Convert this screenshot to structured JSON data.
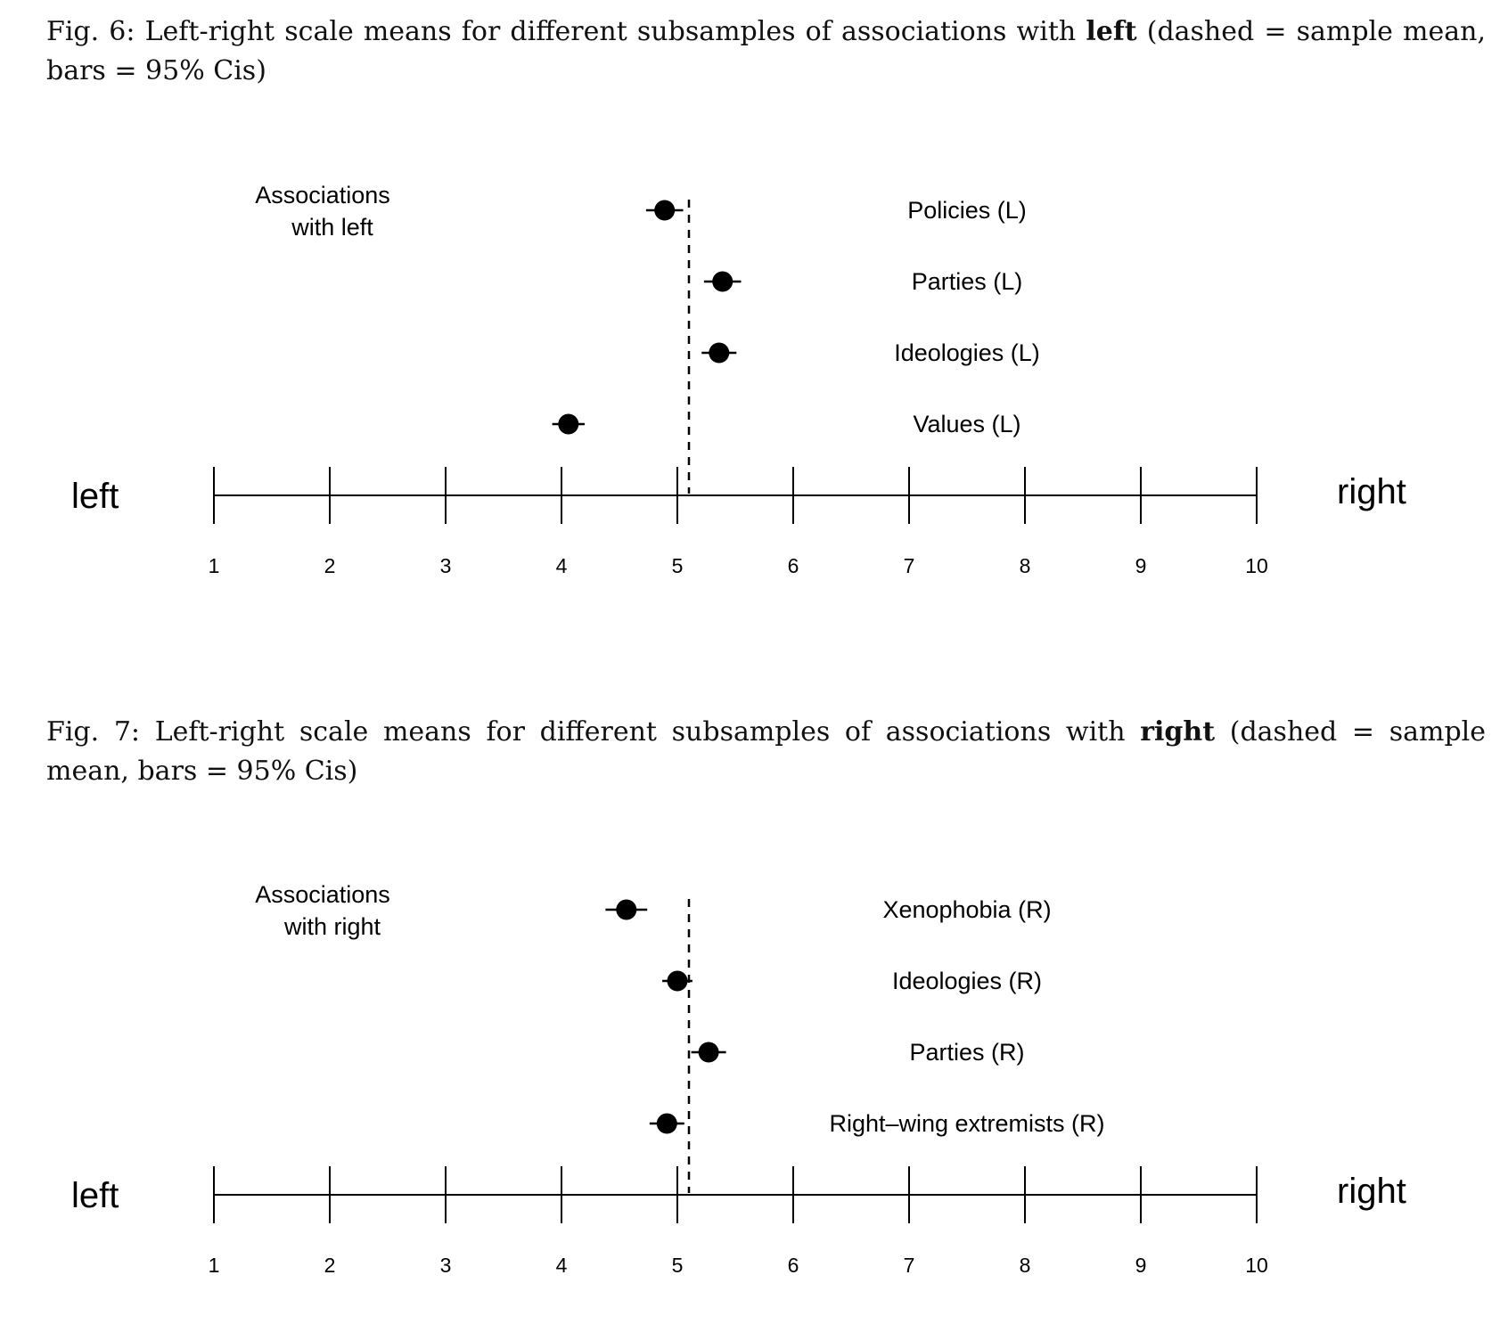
{
  "figures": [
    {
      "caption_lead": "Fig. 6: Left-right scale means for different subsamples of associations with ",
      "caption_bold": "left",
      "caption_tail": " (dashed = sample mean, bars = 95% Cis)"
    },
    {
      "caption_lead": "Fig. 7: Left-right scale means for different subsamples of associations with ",
      "caption_bold": "right",
      "caption_tail": " (dashed = sample mean, bars = 95% Cis)"
    }
  ],
  "chart_data": [
    {
      "type": "scatter",
      "panel_label": [
        "Associations",
        "with left"
      ],
      "left_label": "left",
      "right_label": "right",
      "xlim": [
        1,
        10
      ],
      "x_ticks": [
        1,
        2,
        3,
        4,
        5,
        6,
        7,
        8,
        9,
        10
      ],
      "sample_mean": 5.1,
      "points": [
        {
          "label": "Policies (L)",
          "mean": 4.89,
          "ci": [
            4.73,
            5.05
          ]
        },
        {
          "label": "Parties (L)",
          "mean": 5.39,
          "ci": [
            5.23,
            5.55
          ]
        },
        {
          "label": "Ideologies (L)",
          "mean": 5.36,
          "ci": [
            5.21,
            5.51
          ]
        },
        {
          "label": "Values (L)",
          "mean": 4.06,
          "ci": [
            3.92,
            4.2
          ]
        }
      ]
    },
    {
      "type": "scatter",
      "panel_label": [
        "Associations",
        "with right"
      ],
      "left_label": "left",
      "right_label": "right",
      "xlim": [
        1,
        10
      ],
      "x_ticks": [
        1,
        2,
        3,
        4,
        5,
        6,
        7,
        8,
        9,
        10
      ],
      "sample_mean": 5.1,
      "points": [
        {
          "label": "Xenophobia (R)",
          "mean": 4.56,
          "ci": [
            4.38,
            4.74
          ]
        },
        {
          "label": "Ideologies (R)",
          "mean": 5.0,
          "ci": [
            4.87,
            5.13
          ]
        },
        {
          "label": "Parties (R)",
          "mean": 5.27,
          "ci": [
            5.12,
            5.42
          ]
        },
        {
          "label": "Right–wing extremists (R)",
          "mean": 4.91,
          "ci": [
            4.76,
            5.06
          ]
        }
      ]
    }
  ]
}
